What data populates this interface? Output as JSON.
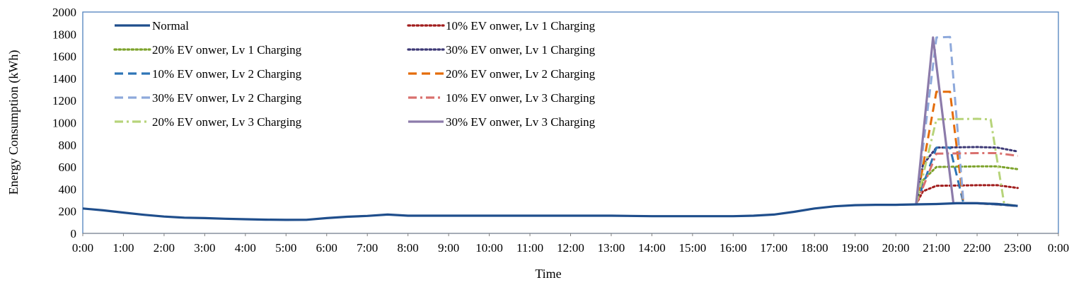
{
  "chart_data": {
    "type": "line",
    "title": "",
    "xlabel": "Time",
    "ylabel": "Energy Consumption (kWh)",
    "ylim": [
      0,
      2000
    ],
    "yticks": [
      0,
      200,
      400,
      600,
      800,
      1000,
      1200,
      1400,
      1600,
      1800,
      2000
    ],
    "xticks": [
      "0:00",
      "1:00",
      "2:00",
      "3:00",
      "4:00",
      "5:00",
      "6:00",
      "7:00",
      "8:00",
      "9:00",
      "10:00",
      "11:00",
      "12:00",
      "13:00",
      "14:00",
      "15:00",
      "16:00",
      "17:00",
      "18:00",
      "19:00",
      "20:00",
      "21:00",
      "22:00",
      "23:00",
      "0:00"
    ],
    "xlim": [
      "0:00",
      "0:00"
    ],
    "grid": false,
    "legend_position": "top-left inside",
    "series": [
      {
        "name": "Normal",
        "color": "#1F4E8C",
        "style": "solid",
        "x": [
          "0:00",
          "0:30",
          "1:00",
          "1:30",
          "2:00",
          "2:30",
          "3:00",
          "3:30",
          "4:00",
          "4:30",
          "5:00",
          "5:30",
          "6:00",
          "6:30",
          "7:00",
          "7:30",
          "8:00",
          "9:00",
          "10:00",
          "11:00",
          "12:00",
          "13:00",
          "14:00",
          "15:00",
          "16:00",
          "16:30",
          "17:00",
          "17:30",
          "18:00",
          "18:30",
          "19:00",
          "19:30",
          "20:00",
          "20:30",
          "21:00",
          "21:30",
          "22:00",
          "22:30",
          "23:00"
        ],
        "values": [
          225,
          208,
          188,
          168,
          152,
          142,
          138,
          132,
          128,
          124,
          122,
          123,
          138,
          150,
          158,
          170,
          160,
          160,
          160,
          160,
          160,
          160,
          155,
          155,
          155,
          160,
          170,
          195,
          225,
          245,
          255,
          258,
          258,
          262,
          265,
          272,
          272,
          265,
          248
        ]
      },
      {
        "name": "10% EV onwer, Lv 1 Charging",
        "color": "#A11D1D",
        "style": "dotted",
        "x": [
          "20:30",
          "20:40",
          "21:00",
          "22:00",
          "22:30",
          "23:00"
        ],
        "values": [
          262,
          380,
          430,
          435,
          435,
          410
        ]
      },
      {
        "name": "20% EV onwer, Lv 1 Charging",
        "color": "#7DA32C",
        "style": "dotted",
        "x": [
          "20:30",
          "20:40",
          "21:00",
          "22:00",
          "22:30",
          "23:00"
        ],
        "values": [
          262,
          480,
          600,
          605,
          605,
          580
        ]
      },
      {
        "name": "30% EV onwer, Lv 1 Charging",
        "color": "#3C3875",
        "style": "dotted",
        "x": [
          "20:30",
          "20:40",
          "21:00",
          "22:00",
          "22:30",
          "23:00"
        ],
        "values": [
          262,
          620,
          775,
          780,
          775,
          740
        ]
      },
      {
        "name": "10% EV onwer, Lv 2 Charging",
        "color": "#2E75B6",
        "style": "dashed",
        "x": [
          "20:30",
          "21:00",
          "21:20",
          "21:40",
          "22:00",
          "23:00"
        ],
        "values": [
          262,
          775,
          775,
          272,
          272,
          248
        ]
      },
      {
        "name": "20% EV onwer, Lv 2 Charging",
        "color": "#E46C0A",
        "style": "dashed",
        "x": [
          "20:30",
          "21:00",
          "21:20",
          "21:40",
          "22:00",
          "23:00"
        ],
        "values": [
          262,
          1280,
          1280,
          272,
          272,
          248
        ]
      },
      {
        "name": "30% EV onwer, Lv 2 Charging",
        "color": "#8EA9DB",
        "style": "dashed",
        "x": [
          "20:30",
          "21:00",
          "21:20",
          "21:40",
          "22:00",
          "23:00"
        ],
        "values": [
          262,
          1770,
          1775,
          272,
          272,
          248
        ]
      },
      {
        "name": "10% EV onwer, Lv 3 Charging",
        "color": "#D9706E",
        "style": "dashdot",
        "x": [
          "20:30",
          "21:00",
          "22:00",
          "22:30",
          "23:00"
        ],
        "values": [
          262,
          720,
          725,
          725,
          700
        ]
      },
      {
        "name": "20% EV onwer, Lv 3 Charging",
        "color": "#B7D47A",
        "style": "dashdot",
        "x": [
          "20:30",
          "21:00",
          "22:00",
          "22:20",
          "22:40",
          "23:00"
        ],
        "values": [
          262,
          1030,
          1035,
          1030,
          265,
          248
        ]
      },
      {
        "name": "30% EV onwer, Lv 3 Charging",
        "color": "#8C7BAA",
        "style": "solid",
        "x": [
          "20:30",
          "20:55",
          "21:25",
          "22:00",
          "22:30",
          "23:00"
        ],
        "values": [
          262,
          1770,
          272,
          272,
          265,
          248
        ]
      }
    ]
  }
}
